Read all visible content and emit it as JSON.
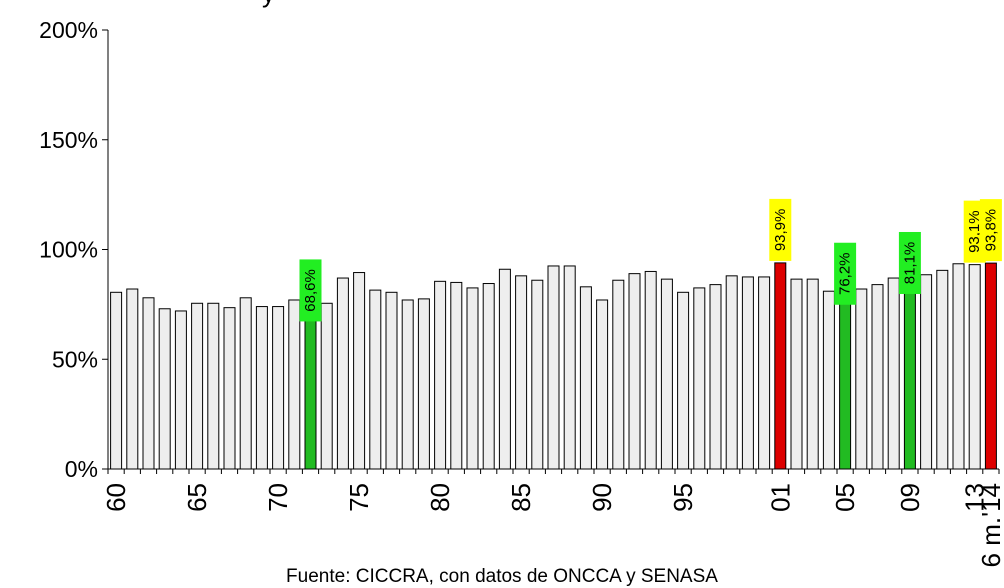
{
  "top_fragment": "y",
  "source": "Fuente: CICCRA, con datos de ONCCA y SENASA",
  "colors": {
    "default_bar": "#eeeeee",
    "min_bar": "#22bb22",
    "max_bar": "#dd0000",
    "min_label_bg": "#22ee22",
    "max_label_bg": "#ffff00"
  },
  "chart_data": {
    "type": "bar",
    "ylabel": "",
    "xlabel": "",
    "ylim": [
      0,
      200
    ],
    "y_ticks": [
      "0%",
      "50%",
      "100%",
      "150%",
      "200%"
    ],
    "y_tick_values": [
      0,
      50,
      100,
      150,
      200
    ],
    "categories": [
      "60",
      "61",
      "62",
      "63",
      "64",
      "65",
      "66",
      "67",
      "68",
      "69",
      "70",
      "71",
      "72",
      "73",
      "74",
      "75",
      "76",
      "77",
      "78",
      "79",
      "80",
      "81",
      "82",
      "83",
      "84",
      "85",
      "86",
      "87",
      "88",
      "89",
      "90",
      "91",
      "92",
      "93",
      "94",
      "95",
      "96",
      "97",
      "98",
      "99",
      "00",
      "01",
      "02",
      "03",
      "04",
      "05",
      "06",
      "07",
      "08",
      "09",
      "10",
      "11",
      "12",
      "13",
      "6 m.'14"
    ],
    "x_tick_labels": [
      "60",
      "65",
      "70",
      "75",
      "80",
      "85",
      "90",
      "95",
      "01",
      "05",
      "09",
      "13",
      "6 m.'14"
    ],
    "x_tick_categories": [
      "60",
      "65",
      "70",
      "75",
      "80",
      "85",
      "90",
      "95",
      "01",
      "05",
      "09",
      "13",
      "6 m.'14"
    ],
    "values": [
      80.5,
      82,
      78,
      73,
      72,
      75.5,
      75.5,
      73.5,
      78,
      74,
      74,
      77,
      68.6,
      75.5,
      87,
      89.5,
      81.5,
      80.5,
      77,
      77.5,
      85.5,
      85,
      82.5,
      84.5,
      91,
      88,
      86,
      92.5,
      92.5,
      83,
      77,
      86,
      89,
      90,
      86.5,
      80.5,
      82.5,
      84,
      88,
      87.5,
      87.5,
      93.9,
      86.5,
      86.5,
      81,
      76.2,
      82,
      84,
      87,
      81.1,
      88.5,
      90.5,
      93.5,
      93.1,
      93.8
    ],
    "highlights": [
      {
        "category": "72",
        "label": "68,6%",
        "kind": "min"
      },
      {
        "category": "01",
        "label": "93,9%",
        "kind": "max"
      },
      {
        "category": "05",
        "label": "76,2%",
        "kind": "min"
      },
      {
        "category": "09",
        "label": "81,1%",
        "kind": "min"
      },
      {
        "category": "13",
        "label": "93,1%",
        "kind": "max_label_only"
      },
      {
        "category": "6 m.'14",
        "label": "93,8%",
        "kind": "max"
      }
    ]
  }
}
